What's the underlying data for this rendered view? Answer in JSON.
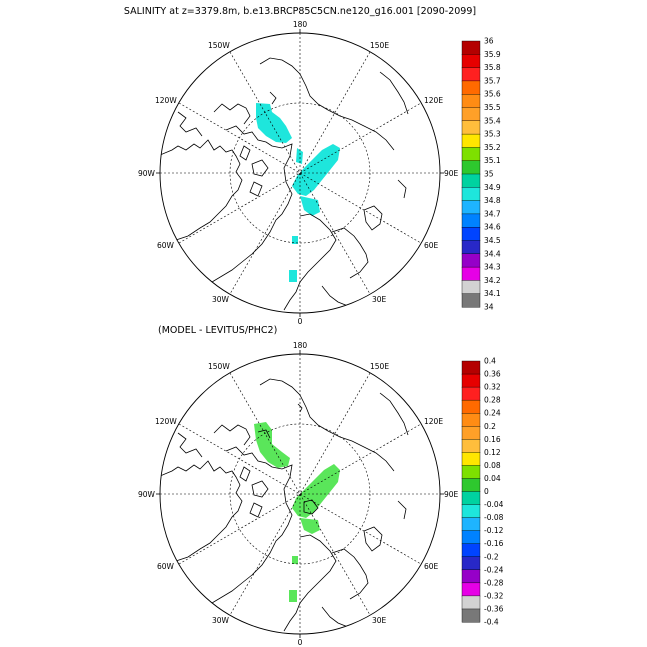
{
  "title": "SALINITY at z=3379.8m, b.e13.BRCP85C5CN.ne120_g16.001 [2090-2099]",
  "subtitle": "(MODEL - LEVITUS/PHC2)",
  "longitude_labels": {
    "lon_180": "180",
    "lon_150E": "150E",
    "lon_120E": "120E",
    "lon_90E": "90E",
    "lon_60E": "60E",
    "lon_30E": "30E",
    "lon_0": "0",
    "lon_30W": "30W",
    "lon_60W": "60W",
    "lon_90W": "90W",
    "lon_120W": "120W",
    "lon_150W": "150W"
  },
  "top_colorbar": {
    "labels": [
      "36",
      "35.9",
      "35.8",
      "35.7",
      "35.6",
      "35.5",
      "35.4",
      "35.3",
      "35.2",
      "35.1",
      "35",
      "34.9",
      "34.8",
      "34.7",
      "34.6",
      "34.5",
      "34.4",
      "34.3",
      "34.2",
      "34.1",
      "34"
    ]
  },
  "bottom_colorbar": {
    "labels": [
      "0.4",
      "0.36",
      "0.32",
      "0.28",
      "0.24",
      "0.2",
      "0.16",
      "0.12",
      "0.08",
      "0.04",
      "0",
      "-0.04",
      "-0.08",
      "-0.12",
      "-0.16",
      "-0.2",
      "-0.24",
      "-0.28",
      "-0.32",
      "-0.36",
      "-0.4"
    ]
  },
  "palette": [
    "#b40000",
    "#e60000",
    "#ff2020",
    "#ff6a00",
    "#ff8c14",
    "#ffa028",
    "#ffbe3c",
    "#ffe600",
    "#7ee000",
    "#2ec82e",
    "#00d2a0",
    "#1ee6dc",
    "#1eb4ff",
    "#0082ff",
    "#0044ff",
    "#2828c8",
    "#9600c8",
    "#e600e6",
    "#d2d2d2",
    "#787878"
  ],
  "top_shading_color": "#1ee6dc",
  "bottom_shading_color": "#5ae65a"
}
